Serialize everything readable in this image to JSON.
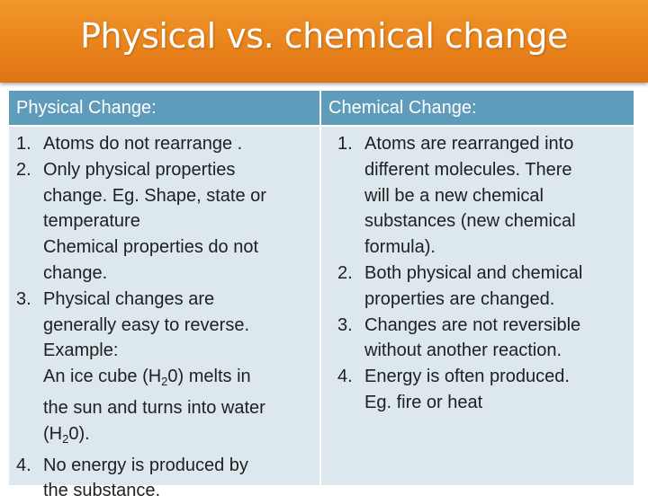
{
  "title": "Physical vs. chemical change",
  "colors": {
    "title_bar": "#e9841c",
    "header_fill": "#5f9bbb",
    "body_fill": "#dde8ee",
    "text": "#202020"
  },
  "table": {
    "physical": {
      "header": "Physical Change:",
      "items": [
        {
          "num": "1.",
          "lines": [
            "Atoms do not rearrange ."
          ]
        },
        {
          "num": "2.",
          "lines": [
            "Only physical properties",
            "change.  Eg. Shape, state or",
            "temperature",
            "Chemical properties do not",
            "change."
          ]
        },
        {
          "num": "3.",
          "lines": [
            "Physical changes are",
            "generally  easy to reverse.",
            "Example:"
          ],
          "ex1": {
            "pre": "An ice cube (H",
            "sub": "2",
            "post": "0) melts in"
          },
          "ex2": "the sun and turns into water",
          "ex3": {
            "pre": "(H",
            "sub": "2",
            "post": "0)."
          }
        },
        {
          "num": "4.",
          "lines": [
            "No energy is produced by",
            "the substance."
          ]
        }
      ]
    },
    "chemical": {
      "header": "Chemical Change:",
      "items": [
        {
          "num": "1.",
          "lines": [
            "Atoms are rearranged into",
            "different molecules. There",
            "will be a new chemical",
            "substances (new chemical",
            "formula)."
          ]
        },
        {
          "num": "2.",
          "lines": [
            "Both physical and chemical",
            "properties are changed."
          ]
        },
        {
          "num": "3.",
          "lines": [
            "Changes are not reversible",
            "without another reaction."
          ]
        },
        {
          "num": "4.",
          "lines": [
            "Energy is often produced.",
            "Eg. fire or heat"
          ]
        }
      ]
    }
  }
}
